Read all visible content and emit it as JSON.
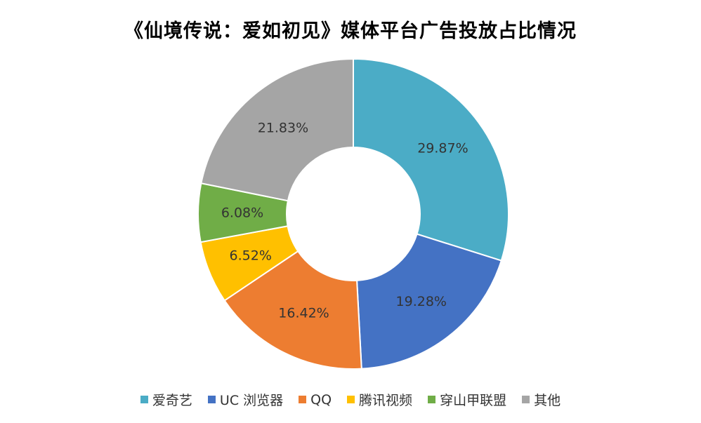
{
  "chart_data": {
    "type": "pie",
    "subtype": "donut",
    "title": "《仙境传说：爱如初见》媒体平台广告投放占比情况",
    "legend_position": "bottom",
    "categories": [
      "爱奇艺",
      "UC 浏览器",
      "QQ",
      "腾讯视频",
      "穿山甲联盟",
      "其他"
    ],
    "values": [
      29.87,
      19.28,
      16.42,
      6.52,
      6.08,
      21.83
    ],
    "labels": [
      "29.87%",
      "19.28%",
      "16.42%",
      "6.52%",
      "6.08%",
      "21.83%"
    ],
    "unit": "%",
    "colors": [
      "#4BACC6",
      "#4472C4",
      "#ED7D31",
      "#FFC000",
      "#70AD47",
      "#A5A5A5"
    ]
  }
}
